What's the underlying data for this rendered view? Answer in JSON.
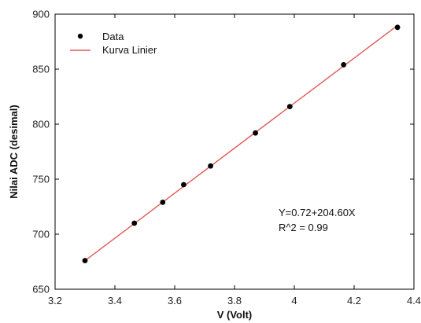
{
  "chart_data": {
    "type": "scatter",
    "title": "",
    "xlabel": "V (Volt)",
    "ylabel": "Nilai ADC (desimal)",
    "xlim": [
      3.2,
      4.4
    ],
    "ylim": [
      650,
      900
    ],
    "x_ticks": [
      3.2,
      3.4,
      3.6,
      3.8,
      4.0,
      4.2,
      4.4
    ],
    "x_tick_labels": [
      "3.2",
      "3.4",
      "3.6",
      "3.8",
      "4",
      "4.2",
      "4.4"
    ],
    "y_ticks": [
      650,
      700,
      750,
      800,
      850,
      900
    ],
    "y_tick_labels": [
      "650",
      "700",
      "750",
      "800",
      "850",
      "900"
    ],
    "grid": false,
    "legend_position": "top-left",
    "series": [
      {
        "name": "Data",
        "kind": "scatter",
        "color": "#000000",
        "x": [
          3.3,
          3.465,
          3.56,
          3.63,
          3.72,
          3.87,
          3.985,
          4.165,
          4.345
        ],
        "y": [
          676,
          710,
          729,
          745,
          762,
          792,
          816,
          854,
          888
        ]
      },
      {
        "name": "Kurva Linier",
        "kind": "line",
        "color": "#e05a5a",
        "intercept": 0.72,
        "slope": 204.6,
        "x_range": [
          3.3,
          4.345
        ]
      }
    ],
    "annotation": {
      "equation": "Y=0.72+204.60X",
      "r2": "R^2 = 0.99"
    }
  }
}
